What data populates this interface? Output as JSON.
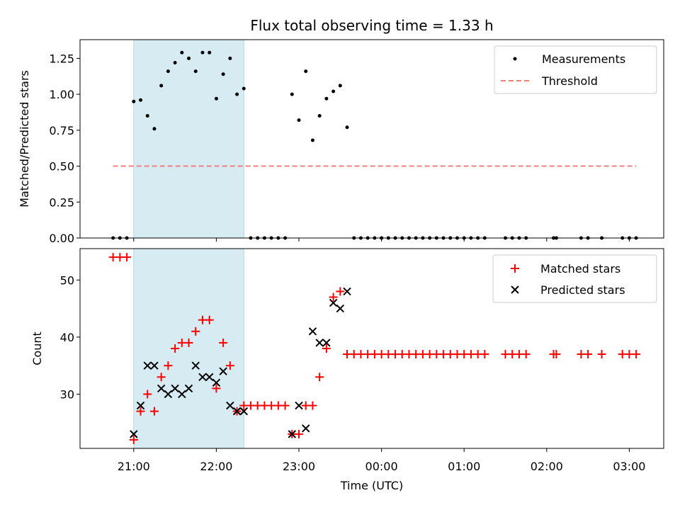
{
  "chart_data": [
    {
      "type": "scatter",
      "title": "Flux total observing time = 1.33 h",
      "ylabel": "Matched/Predicted stars",
      "xlabel": "",
      "ylim": [
        0,
        1.38
      ],
      "yticks": [
        "0.00",
        "0.25",
        "0.50",
        "0.75",
        "1.00",
        "1.25"
      ],
      "ytick_values": [
        0,
        0.25,
        0.5,
        0.75,
        1.0,
        1.25
      ],
      "highlight_span": [
        "21:00",
        "22:20"
      ],
      "legend_position": "top-right",
      "colors": {
        "measurements": "#000000",
        "threshold": "#f08080",
        "span": "#add8e6"
      },
      "series": [
        {
          "name": "Measurements",
          "kind": "scatter",
          "x": [
            "20:45",
            "20:50",
            "20:55",
            "21:00",
            "21:05",
            "21:10",
            "21:15",
            "21:20",
            "21:25",
            "21:30",
            "21:35",
            "21:40",
            "21:45",
            "21:50",
            "21:55",
            "22:00",
            "22:05",
            "22:10",
            "22:15",
            "22:20",
            "22:25",
            "22:30",
            "22:35",
            "22:40",
            "22:45",
            "22:50",
            "22:55",
            "23:00",
            "23:05",
            "23:10",
            "23:15",
            "23:20",
            "23:25",
            "23:30",
            "23:35",
            "23:40",
            "23:45",
            "23:50",
            "23:55",
            "00:00",
            "00:05",
            "00:10",
            "00:15",
            "00:20",
            "00:25",
            "00:30",
            "00:35",
            "00:40",
            "00:45",
            "00:50",
            "00:55",
            "01:00",
            "01:05",
            "01:10",
            "01:15",
            "01:30",
            "01:35",
            "01:40",
            "01:45",
            "02:05",
            "02:07",
            "02:25",
            "02:30",
            "02:40",
            "02:55",
            "03:00",
            "03:05"
          ],
          "y": [
            0,
            0,
            0,
            0.95,
            0.96,
            0.85,
            0.76,
            1.06,
            1.16,
            1.22,
            1.29,
            1.25,
            1.16,
            1.29,
            1.29,
            0.97,
            1.14,
            1.25,
            1.0,
            1.04,
            0,
            0,
            0,
            0,
            0,
            0,
            1.0,
            0.82,
            1.16,
            0.68,
            0.85,
            0.97,
            1.02,
            1.06,
            0.77,
            0,
            0,
            0,
            0,
            0,
            0,
            0,
            0,
            0,
            0,
            0,
            0,
            0,
            0,
            0,
            0,
            0,
            0,
            0,
            0,
            0,
            0,
            0,
            0,
            0,
            0,
            0,
            0,
            0,
            0,
            0,
            0
          ]
        },
        {
          "name": "Threshold",
          "kind": "dashed-line",
          "x": [
            "20:45",
            "03:05"
          ],
          "y": [
            0.5,
            0.5
          ]
        }
      ]
    },
    {
      "type": "scatter",
      "title": "",
      "ylabel": "Count",
      "xlabel": "Time (UTC)",
      "ylim": [
        20.5,
        55.5
      ],
      "yticks": [
        "30",
        "40",
        "50"
      ],
      "ytick_values": [
        30,
        40,
        50
      ],
      "xticks": [
        "21:00",
        "22:00",
        "23:00",
        "00:00",
        "01:00",
        "02:00",
        "03:00"
      ],
      "highlight_span": [
        "21:00",
        "22:20"
      ],
      "legend_position": "top-right",
      "colors": {
        "matched": "#ff0000",
        "predicted": "#000000",
        "span": "#add8e6"
      },
      "series": [
        {
          "name": "Matched stars",
          "marker": "plus",
          "x": [
            "20:45",
            "20:50",
            "20:55",
            "21:00",
            "21:05",
            "21:10",
            "21:15",
            "21:20",
            "21:25",
            "21:30",
            "21:35",
            "21:40",
            "21:45",
            "21:50",
            "21:55",
            "22:00",
            "22:05",
            "22:10",
            "22:15",
            "22:20",
            "22:25",
            "22:30",
            "22:35",
            "22:40",
            "22:45",
            "22:50",
            "22:55",
            "23:00",
            "23:05",
            "23:10",
            "23:15",
            "23:20",
            "23:25",
            "23:30",
            "23:35",
            "23:40",
            "23:45",
            "23:50",
            "23:55",
            "00:00",
            "00:05",
            "00:10",
            "00:15",
            "00:20",
            "00:25",
            "00:30",
            "00:35",
            "00:40",
            "00:45",
            "00:50",
            "00:55",
            "01:00",
            "01:05",
            "01:10",
            "01:15",
            "01:30",
            "01:35",
            "01:40",
            "01:45",
            "02:05",
            "02:07",
            "02:25",
            "02:30",
            "02:40",
            "02:55",
            "03:00",
            "03:05"
          ],
          "y": [
            54,
            54,
            54,
            22,
            27,
            30,
            27,
            33,
            35,
            38,
            39,
            39,
            41,
            43,
            43,
            31,
            39,
            35,
            27,
            28,
            28,
            28,
            28,
            28,
            28,
            28,
            23,
            23,
            28,
            28,
            33,
            38,
            47,
            48,
            37,
            37,
            37,
            37,
            37,
            37,
            37,
            37,
            37,
            37,
            37,
            37,
            37,
            37,
            37,
            37,
            37,
            37,
            37,
            37,
            37,
            37,
            37,
            37,
            37,
            37,
            37,
            37,
            37,
            37,
            37,
            37,
            37
          ]
        },
        {
          "name": "Predicted stars",
          "marker": "x",
          "x": [
            "21:00",
            "21:05",
            "21:10",
            "21:15",
            "21:20",
            "21:25",
            "21:30",
            "21:35",
            "21:40",
            "21:45",
            "21:50",
            "21:55",
            "22:00",
            "22:05",
            "22:10",
            "22:15",
            "22:20",
            "22:55",
            "23:00",
            "23:05",
            "23:10",
            "23:15",
            "23:20",
            "23:25",
            "23:30",
            "23:35"
          ],
          "y": [
            23,
            28,
            35,
            35,
            31,
            30,
            31,
            30,
            31,
            35,
            33,
            33,
            32,
            34,
            28,
            27,
            27,
            23,
            28,
            24,
            41,
            39,
            39,
            46,
            45,
            48
          ]
        }
      ]
    }
  ]
}
